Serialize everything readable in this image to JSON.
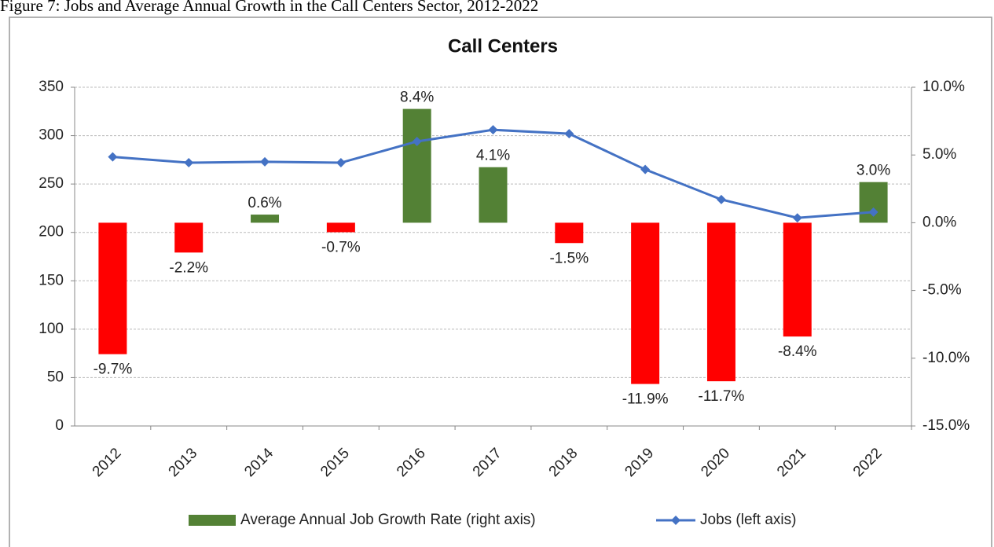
{
  "caption": "Figure 7: Jobs and Average Annual Growth in the Call Centers Sector, 2012-2022",
  "chart_data": {
    "type": "bar_line",
    "title": "Call Centers",
    "categories": [
      "2012",
      "2013",
      "2014",
      "2015",
      "2016",
      "2017",
      "2018",
      "2019",
      "2020",
      "2021",
      "2022"
    ],
    "series": [
      {
        "name": "Average Annual Job Growth Rate (right axis)",
        "type": "bar",
        "axis": "y2",
        "color": "#538135",
        "negative_color": "#ff0000",
        "values": [
          -9.7,
          -2.2,
          0.6,
          -0.7,
          8.4,
          4.1,
          -1.5,
          -11.9,
          -11.7,
          -8.4,
          3.0
        ],
        "value_labels": [
          "-9.7%",
          "-2.2%",
          "0.6%",
          "-0.7%",
          "8.4%",
          "4.1%",
          "-1.5%",
          "-11.9%",
          "-11.7%",
          "-8.4%",
          "3.0%"
        ]
      },
      {
        "name": "Jobs (left axis)",
        "type": "line",
        "axis": "y",
        "color": "#4472c4",
        "values": [
          278,
          272,
          273,
          272,
          294,
          306,
          302,
          265,
          234,
          215,
          221
        ]
      }
    ],
    "ylim": [
      0,
      350
    ],
    "yticks": [
      0,
      50,
      100,
      150,
      200,
      250,
      300,
      350
    ],
    "y2lim": [
      -15,
      10
    ],
    "y2ticks": [
      {
        "value": -15,
        "label": "-15.0%"
      },
      {
        "value": -10,
        "label": "-10.0%"
      },
      {
        "value": -5,
        "label": "-5.0%"
      },
      {
        "value": 0,
        "label": "0.0%"
      },
      {
        "value": 5,
        "label": "5.0%"
      },
      {
        "value": 10,
        "label": "10.0%"
      }
    ],
    "grid": true,
    "legend": "bottom"
  }
}
